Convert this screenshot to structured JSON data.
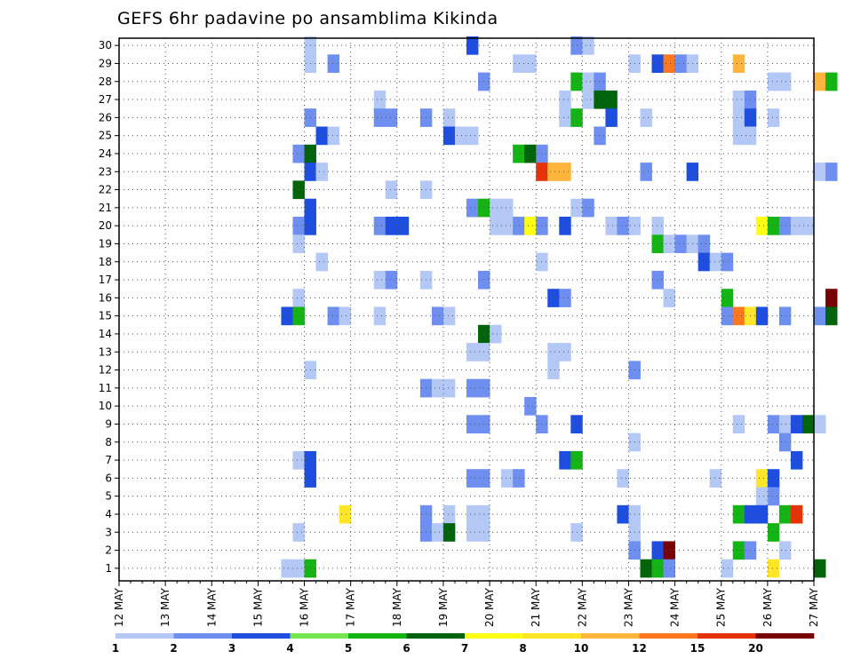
{
  "chart_data": {
    "type": "heatmap",
    "title": "GEFS 6hr padavine po ansamblima Kikinda",
    "xlabel": "",
    "ylabel": "",
    "x_tick_labels": [
      "12 MAY",
      "13 MAY",
      "14 MAY",
      "15 MAY",
      "16 MAY",
      "17 MAY",
      "18 MAY",
      "19 MAY",
      "20 MAY",
      "21 MAY",
      "22 MAY",
      "23 MAY",
      "24 MAY",
      "25 MAY",
      "26 MAY",
      "27 MAY"
    ],
    "y_tick_labels": [
      "1",
      "2",
      "3",
      "4",
      "5",
      "6",
      "7",
      "8",
      "9",
      "10",
      "11",
      "12",
      "13",
      "14",
      "15",
      "16",
      "17",
      "18",
      "19",
      "20",
      "21",
      "22",
      "23",
      "24",
      "25",
      "26",
      "27",
      "28",
      "29",
      "30"
    ],
    "grid": true,
    "legend": {
      "placement": "bottom",
      "levels": [
        "1",
        "2",
        "3",
        "4",
        "5",
        "6",
        "7",
        "8",
        "10",
        "12",
        "15",
        "20"
      ],
      "colors": [
        "#b4c8f5",
        "#6e8ef0",
        "#1e4ee0",
        "#78e650",
        "#14b414",
        "#00640a",
        "#ffff14",
        "#ffe628",
        "#ffb43c",
        "#ff781e",
        "#e6320a",
        "#780000"
      ]
    },
    "cells": [
      {
        "t": "16 MAY 00Z",
        "y": 30,
        "v": 1
      },
      {
        "t": "16 MAY 00Z",
        "y": 29,
        "v": 1
      },
      {
        "t": "16 MAY 12Z",
        "y": 29,
        "v": 2
      },
      {
        "t": "19 MAY 12Z",
        "y": 30,
        "v": 3
      },
      {
        "t": "21 MAY 18Z",
        "y": 30,
        "v": 2
      },
      {
        "t": "22 MAY 00Z",
        "y": 30,
        "v": 1
      },
      {
        "t": "20 MAY 12Z",
        "y": 29,
        "v": 1
      },
      {
        "t": "20 MAY 18Z",
        "y": 29,
        "v": 1
      },
      {
        "t": "23 MAY 00Z",
        "y": 29,
        "v": 1
      },
      {
        "t": "23 MAY 12Z",
        "y": 29,
        "v": 3
      },
      {
        "t": "23 MAY 18Z",
        "y": 29,
        "v": 12
      },
      {
        "t": "24 MAY 00Z",
        "y": 29,
        "v": 2
      },
      {
        "t": "24 MAY 06Z",
        "y": 29,
        "v": 1
      },
      {
        "t": "25 MAY 06Z",
        "y": 29,
        "v": 10
      },
      {
        "t": "19 MAY 18Z",
        "y": 28,
        "v": 2
      },
      {
        "t": "21 MAY 18Z",
        "y": 28,
        "v": 5
      },
      {
        "t": "22 MAY 00Z",
        "y": 28,
        "v": 1
      },
      {
        "t": "22 MAY 06Z",
        "y": 28,
        "v": 2
      },
      {
        "t": "26 MAY 00Z",
        "y": 28,
        "v": 1
      },
      {
        "t": "26 MAY 06Z",
        "y": 28,
        "v": 1
      },
      {
        "t": "27 MAY 00Z",
        "y": 28,
        "v": 10
      },
      {
        "t": "27 MAY 06Z",
        "y": 28,
        "v": 5
      },
      {
        "t": "17 MAY 12Z",
        "y": 27,
        "v": 1
      },
      {
        "t": "21 MAY 12Z",
        "y": 27,
        "v": 1
      },
      {
        "t": "22 MAY 00Z",
        "y": 27,
        "v": 1
      },
      {
        "t": "22 MAY 06Z",
        "y": 27,
        "v": 6
      },
      {
        "t": "22 MAY 12Z",
        "y": 27,
        "v": 6
      },
      {
        "t": "25 MAY 06Z",
        "y": 27,
        "v": 1
      },
      {
        "t": "25 MAY 12Z",
        "y": 27,
        "v": 2
      },
      {
        "t": "16 MAY 00Z",
        "y": 26,
        "v": 2
      },
      {
        "t": "17 MAY 12Z",
        "y": 26,
        "v": 2
      },
      {
        "t": "17 MAY 18Z",
        "y": 26,
        "v": 2
      },
      {
        "t": "18 MAY 12Z",
        "y": 26,
        "v": 2
      },
      {
        "t": "19 MAY 00Z",
        "y": 26,
        "v": 1
      },
      {
        "t": "21 MAY 12Z",
        "y": 26,
        "v": 1
      },
      {
        "t": "21 MAY 18Z",
        "y": 26,
        "v": 5
      },
      {
        "t": "22 MAY 12Z",
        "y": 26,
        "v": 3
      },
      {
        "t": "23 MAY 06Z",
        "y": 26,
        "v": 1
      },
      {
        "t": "25 MAY 06Z",
        "y": 26,
        "v": 1
      },
      {
        "t": "25 MAY 12Z",
        "y": 26,
        "v": 3
      },
      {
        "t": "26 MAY 00Z",
        "y": 26,
        "v": 1
      },
      {
        "t": "16 MAY 06Z",
        "y": 25,
        "v": 3
      },
      {
        "t": "16 MAY 12Z",
        "y": 25,
        "v": 1
      },
      {
        "t": "19 MAY 00Z",
        "y": 25,
        "v": 3
      },
      {
        "t": "19 MAY 06Z",
        "y": 25,
        "v": 1
      },
      {
        "t": "19 MAY 12Z",
        "y": 25,
        "v": 1
      },
      {
        "t": "22 MAY 06Z",
        "y": 25,
        "v": 2
      },
      {
        "t": "25 MAY 06Z",
        "y": 25,
        "v": 1
      },
      {
        "t": "25 MAY 12Z",
        "y": 25,
        "v": 1
      },
      {
        "t": "15 MAY 18Z",
        "y": 24,
        "v": 2
      },
      {
        "t": "16 MAY 00Z",
        "y": 24,
        "v": 6
      },
      {
        "t": "20 MAY 12Z",
        "y": 24,
        "v": 5
      },
      {
        "t": "20 MAY 18Z",
        "y": 24,
        "v": 6
      },
      {
        "t": "21 MAY 00Z",
        "y": 24,
        "v": 2
      },
      {
        "t": "16 MAY 00Z",
        "y": 23,
        "v": 3
      },
      {
        "t": "16 MAY 06Z",
        "y": 23,
        "v": 1
      },
      {
        "t": "21 MAY 00Z",
        "y": 23,
        "v": 15
      },
      {
        "t": "21 MAY 06Z",
        "y": 23,
        "v": 10
      },
      {
        "t": "21 MAY 12Z",
        "y": 23,
        "v": 10
      },
      {
        "t": "23 MAY 06Z",
        "y": 23,
        "v": 2
      },
      {
        "t": "24 MAY 06Z",
        "y": 23,
        "v": 3
      },
      {
        "t": "27 MAY 00Z",
        "y": 23,
        "v": 1
      },
      {
        "t": "27 MAY 06Z",
        "y": 23,
        "v": 2
      },
      {
        "t": "15 MAY 18Z",
        "y": 22,
        "v": 6
      },
      {
        "t": "17 MAY 18Z",
        "y": 22,
        "v": 1
      },
      {
        "t": "18 MAY 12Z",
        "y": 22,
        "v": 1
      },
      {
        "t": "16 MAY 00Z",
        "y": 21,
        "v": 3
      },
      {
        "t": "19 MAY 12Z",
        "y": 21,
        "v": 2
      },
      {
        "t": "19 MAY 18Z",
        "y": 21,
        "v": 5
      },
      {
        "t": "20 MAY 00Z",
        "y": 21,
        "v": 1
      },
      {
        "t": "20 MAY 06Z",
        "y": 21,
        "v": 1
      },
      {
        "t": "21 MAY 18Z",
        "y": 21,
        "v": 1
      },
      {
        "t": "22 MAY 00Z",
        "y": 21,
        "v": 2
      },
      {
        "t": "15 MAY 18Z",
        "y": 20,
        "v": 2
      },
      {
        "t": "16 MAY 00Z",
        "y": 20,
        "v": 3
      },
      {
        "t": "17 MAY 12Z",
        "y": 20,
        "v": 2
      },
      {
        "t": "17 MAY 18Z",
        "y": 20,
        "v": 3
      },
      {
        "t": "18 MAY 00Z",
        "y": 20,
        "v": 3
      },
      {
        "t": "20 MAY 00Z",
        "y": 20,
        "v": 1
      },
      {
        "t": "20 MAY 06Z",
        "y": 20,
        "v": 1
      },
      {
        "t": "20 MAY 12Z",
        "y": 20,
        "v": 2
      },
      {
        "t": "20 MAY 18Z",
        "y": 20,
        "v": 7
      },
      {
        "t": "21 MAY 00Z",
        "y": 20,
        "v": 2
      },
      {
        "t": "21 MAY 12Z",
        "y": 20,
        "v": 3
      },
      {
        "t": "22 MAY 12Z",
        "y": 20,
        "v": 1
      },
      {
        "t": "22 MAY 18Z",
        "y": 20,
        "v": 2
      },
      {
        "t": "23 MAY 00Z",
        "y": 20,
        "v": 1
      },
      {
        "t": "23 MAY 12Z",
        "y": 20,
        "v": 1
      },
      {
        "t": "25 MAY 18Z",
        "y": 20,
        "v": 7
      },
      {
        "t": "26 MAY 00Z",
        "y": 20,
        "v": 5
      },
      {
        "t": "26 MAY 06Z",
        "y": 20,
        "v": 2
      },
      {
        "t": "26 MAY 12Z",
        "y": 20,
        "v": 1
      },
      {
        "t": "26 MAY 18Z",
        "y": 20,
        "v": 1
      },
      {
        "t": "15 MAY 18Z",
        "y": 19,
        "v": 1
      },
      {
        "t": "23 MAY 12Z",
        "y": 19,
        "v": 5
      },
      {
        "t": "23 MAY 18Z",
        "y": 19,
        "v": 1
      },
      {
        "t": "24 MAY 00Z",
        "y": 19,
        "v": 2
      },
      {
        "t": "24 MAY 06Z",
        "y": 19,
        "v": 1
      },
      {
        "t": "24 MAY 12Z",
        "y": 19,
        "v": 2
      },
      {
        "t": "16 MAY 06Z",
        "y": 18,
        "v": 1
      },
      {
        "t": "21 MAY 00Z",
        "y": 18,
        "v": 1
      },
      {
        "t": "24 MAY 12Z",
        "y": 18,
        "v": 3
      },
      {
        "t": "24 MAY 18Z",
        "y": 18,
        "v": 1
      },
      {
        "t": "25 MAY 00Z",
        "y": 18,
        "v": 2
      },
      {
        "t": "17 MAY 12Z",
        "y": 17,
        "v": 1
      },
      {
        "t": "17 MAY 18Z",
        "y": 17,
        "v": 2
      },
      {
        "t": "18 MAY 12Z",
        "y": 17,
        "v": 1
      },
      {
        "t": "19 MAY 18Z",
        "y": 17,
        "v": 2
      },
      {
        "t": "23 MAY 12Z",
        "y": 17,
        "v": 2
      },
      {
        "t": "15 MAY 18Z",
        "y": 16,
        "v": 1
      },
      {
        "t": "21 MAY 06Z",
        "y": 16,
        "v": 3
      },
      {
        "t": "21 MAY 12Z",
        "y": 16,
        "v": 2
      },
      {
        "t": "23 MAY 18Z",
        "y": 16,
        "v": 1
      },
      {
        "t": "25 MAY 00Z",
        "y": 16,
        "v": 5
      },
      {
        "t": "27 MAY 06Z",
        "y": 16,
        "v": 20
      },
      {
        "t": "15 MAY 12Z",
        "y": 15,
        "v": 3
      },
      {
        "t": "15 MAY 18Z",
        "y": 15,
        "v": 5
      },
      {
        "t": "16 MAY 12Z",
        "y": 15,
        "v": 2
      },
      {
        "t": "16 MAY 18Z",
        "y": 15,
        "v": 1
      },
      {
        "t": "17 MAY 12Z",
        "y": 15,
        "v": 1
      },
      {
        "t": "18 MAY 18Z",
        "y": 15,
        "v": 2
      },
      {
        "t": "19 MAY 00Z",
        "y": 15,
        "v": 1
      },
      {
        "t": "25 MAY 00Z",
        "y": 15,
        "v": 2
      },
      {
        "t": "25 MAY 06Z",
        "y": 15,
        "v": 12
      },
      {
        "t": "25 MAY 12Z",
        "y": 15,
        "v": 8
      },
      {
        "t": "25 MAY 18Z",
        "y": 15,
        "v": 3
      },
      {
        "t": "26 MAY 06Z",
        "y": 15,
        "v": 2
      },
      {
        "t": "27 MAY 00Z",
        "y": 15,
        "v": 2
      },
      {
        "t": "27 MAY 06Z",
        "y": 15,
        "v": 6
      },
      {
        "t": "19 MAY 18Z",
        "y": 14,
        "v": 6
      },
      {
        "t": "20 MAY 00Z",
        "y": 14,
        "v": 1
      },
      {
        "t": "19 MAY 12Z",
        "y": 13,
        "v": 1
      },
      {
        "t": "19 MAY 18Z",
        "y": 13,
        "v": 1
      },
      {
        "t": "21 MAY 06Z",
        "y": 13,
        "v": 1
      },
      {
        "t": "21 MAY 12Z",
        "y": 13,
        "v": 1
      },
      {
        "t": "16 MAY 00Z",
        "y": 12,
        "v": 1
      },
      {
        "t": "21 MAY 06Z",
        "y": 12,
        "v": 1
      },
      {
        "t": "23 MAY 00Z",
        "y": 12,
        "v": 2
      },
      {
        "t": "18 MAY 12Z",
        "y": 11,
        "v": 2
      },
      {
        "t": "18 MAY 18Z",
        "y": 11,
        "v": 1
      },
      {
        "t": "19 MAY 00Z",
        "y": 11,
        "v": 1
      },
      {
        "t": "19 MAY 12Z",
        "y": 11,
        "v": 2
      },
      {
        "t": "19 MAY 18Z",
        "y": 11,
        "v": 2
      },
      {
        "t": "20 MAY 18Z",
        "y": 10,
        "v": 2
      },
      {
        "t": "19 MAY 12Z",
        "y": 9,
        "v": 2
      },
      {
        "t": "19 MAY 18Z",
        "y": 9,
        "v": 2
      },
      {
        "t": "21 MAY 00Z",
        "y": 9,
        "v": 2
      },
      {
        "t": "21 MAY 18Z",
        "y": 9,
        "v": 3
      },
      {
        "t": "25 MAY 06Z",
        "y": 9,
        "v": 1
      },
      {
        "t": "26 MAY 00Z",
        "y": 9,
        "v": 2
      },
      {
        "t": "26 MAY 06Z",
        "y": 9,
        "v": 1
      },
      {
        "t": "26 MAY 12Z",
        "y": 9,
        "v": 3
      },
      {
        "t": "26 MAY 18Z",
        "y": 9,
        "v": 6
      },
      {
        "t": "27 MAY 00Z",
        "y": 9,
        "v": 1
      },
      {
        "t": "23 MAY 00Z",
        "y": 8,
        "v": 1
      },
      {
        "t": "26 MAY 06Z",
        "y": 8,
        "v": 2
      },
      {
        "t": "15 MAY 18Z",
        "y": 7,
        "v": 1
      },
      {
        "t": "16 MAY 00Z",
        "y": 7,
        "v": 3
      },
      {
        "t": "21 MAY 12Z",
        "y": 7,
        "v": 3
      },
      {
        "t": "21 MAY 18Z",
        "y": 7,
        "v": 5
      },
      {
        "t": "26 MAY 12Z",
        "y": 7,
        "v": 3
      },
      {
        "t": "16 MAY 00Z",
        "y": 6,
        "v": 3
      },
      {
        "t": "19 MAY 12Z",
        "y": 6,
        "v": 2
      },
      {
        "t": "19 MAY 18Z",
        "y": 6,
        "v": 2
      },
      {
        "t": "20 MAY 06Z",
        "y": 6,
        "v": 1
      },
      {
        "t": "20 MAY 12Z",
        "y": 6,
        "v": 2
      },
      {
        "t": "22 MAY 18Z",
        "y": 6,
        "v": 1
      },
      {
        "t": "24 MAY 18Z",
        "y": 6,
        "v": 1
      },
      {
        "t": "25 MAY 18Z",
        "y": 6,
        "v": 8
      },
      {
        "t": "26 MAY 00Z",
        "y": 6,
        "v": 3
      },
      {
        "t": "26 MAY 00Z",
        "y": 5,
        "v": 2
      },
      {
        "t": "25 MAY 18Z",
        "y": 5,
        "v": 1
      },
      {
        "t": "16 MAY 18Z",
        "y": 4,
        "v": 8
      },
      {
        "t": "18 MAY 12Z",
        "y": 4,
        "v": 2
      },
      {
        "t": "19 MAY 00Z",
        "y": 4,
        "v": 1
      },
      {
        "t": "19 MAY 12Z",
        "y": 4,
        "v": 1
      },
      {
        "t": "19 MAY 18Z",
        "y": 4,
        "v": 1
      },
      {
        "t": "22 MAY 18Z",
        "y": 4,
        "v": 3
      },
      {
        "t": "23 MAY 00Z",
        "y": 4,
        "v": 1
      },
      {
        "t": "25 MAY 06Z",
        "y": 4,
        "v": 5
      },
      {
        "t": "25 MAY 12Z",
        "y": 4,
        "v": 3
      },
      {
        "t": "25 MAY 18Z",
        "y": 4,
        "v": 3
      },
      {
        "t": "26 MAY 06Z",
        "y": 4,
        "v": 5
      },
      {
        "t": "26 MAY 12Z",
        "y": 4,
        "v": 15
      },
      {
        "t": "15 MAY 18Z",
        "y": 3,
        "v": 1
      },
      {
        "t": "18 MAY 12Z",
        "y": 3,
        "v": 2
      },
      {
        "t": "18 MAY 18Z",
        "y": 3,
        "v": 1
      },
      {
        "t": "19 MAY 00Z",
        "y": 3,
        "v": 6
      },
      {
        "t": "19 MAY 12Z",
        "y": 3,
        "v": 1
      },
      {
        "t": "19 MAY 18Z",
        "y": 3,
        "v": 1
      },
      {
        "t": "21 MAY 18Z",
        "y": 3,
        "v": 1
      },
      {
        "t": "23 MAY 00Z",
        "y": 3,
        "v": 1
      },
      {
        "t": "26 MAY 00Z",
        "y": 3,
        "v": 5
      },
      {
        "t": "23 MAY 00Z",
        "y": 2,
        "v": 2
      },
      {
        "t": "23 MAY 12Z",
        "y": 2,
        "v": 3
      },
      {
        "t": "23 MAY 18Z",
        "y": 2,
        "v": 20
      },
      {
        "t": "25 MAY 06Z",
        "y": 2,
        "v": 5
      },
      {
        "t": "25 MAY 12Z",
        "y": 2,
        "v": 2
      },
      {
        "t": "26 MAY 06Z",
        "y": 2,
        "v": 1
      },
      {
        "t": "15 MAY 12Z",
        "y": 1,
        "v": 1
      },
      {
        "t": "15 MAY 18Z",
        "y": 1,
        "v": 1
      },
      {
        "t": "16 MAY 00Z",
        "y": 1,
        "v": 5
      },
      {
        "t": "23 MAY 06Z",
        "y": 1,
        "v": 6
      },
      {
        "t": "23 MAY 12Z",
        "y": 1,
        "v": 5
      },
      {
        "t": "23 MAY 18Z",
        "y": 1,
        "v": 2
      },
      {
        "t": "25 MAY 00Z",
        "y": 1,
        "v": 1
      },
      {
        "t": "26 MAY 00Z",
        "y": 1,
        "v": 8
      },
      {
        "t": "27 MAY 00Z",
        "y": 1,
        "v": 6
      }
    ]
  }
}
